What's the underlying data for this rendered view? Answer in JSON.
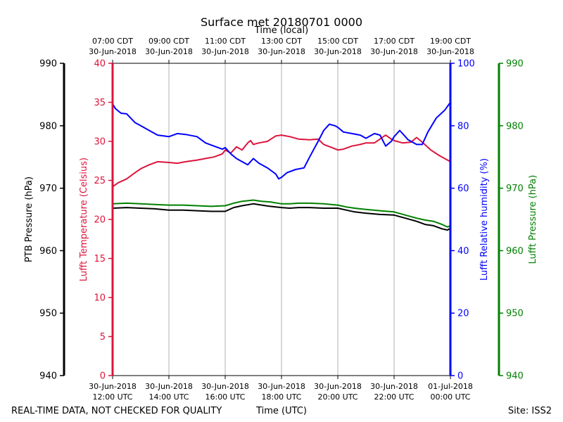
{
  "chart_data": {
    "type": "line",
    "title": "Surface met 20180701 0000",
    "top_axis_label": "Time (local)",
    "bottom_axis_label": "Time (UTC)",
    "footer_left": "REAL-TIME DATA, NOT CHECKED FOR QUALITY",
    "footer_right": "Site: ISS2",
    "x_range_hours_utc": [
      12,
      24
    ],
    "bottom_ticks": [
      {
        "hour": 12,
        "line1": "30-Jun-2018",
        "line2": "12:00 UTC"
      },
      {
        "hour": 14,
        "line1": "30-Jun-2018",
        "line2": "14:00 UTC"
      },
      {
        "hour": 16,
        "line1": "30-Jun-2018",
        "line2": "16:00 UTC"
      },
      {
        "hour": 18,
        "line1": "30-Jun-2018",
        "line2": "18:00 UTC"
      },
      {
        "hour": 20,
        "line1": "30-Jun-2018",
        "line2": "20:00 UTC"
      },
      {
        "hour": 22,
        "line1": "30-Jun-2018",
        "line2": "22:00 UTC"
      },
      {
        "hour": 24,
        "line1": "01-Jul-2018",
        "line2": "00:00 UTC"
      }
    ],
    "top_ticks": [
      {
        "hour": 12,
        "line1": "07:00 CDT",
        "line2": "30-Jun-2018"
      },
      {
        "hour": 14,
        "line1": "09:00 CDT",
        "line2": "30-Jun-2018"
      },
      {
        "hour": 16,
        "line1": "11:00 CDT",
        "line2": "30-Jun-2018"
      },
      {
        "hour": 18,
        "line1": "13:00 CDT",
        "line2": "30-Jun-2018"
      },
      {
        "hour": 20,
        "line1": "15:00 CDT",
        "line2": "30-Jun-2018"
      },
      {
        "hour": 22,
        "line1": "17:00 CDT",
        "line2": "30-Jun-2018"
      },
      {
        "hour": 24,
        "line1": "19:00 CDT",
        "line2": "30-Jun-2018"
      }
    ],
    "axes": {
      "ptb": {
        "label": "PTB Pressure (hPa)",
        "color": "#000000",
        "range": [
          940,
          990
        ],
        "ticks": [
          940,
          950,
          960,
          970,
          980,
          990
        ]
      },
      "temp": {
        "label": "Lufft Temperature (Celsius)",
        "color": "#dc143c",
        "range": [
          0,
          40
        ],
        "ticks": [
          0,
          5,
          10,
          15,
          20,
          25,
          30,
          35,
          40
        ]
      },
      "rh": {
        "label": "Lufft Relative humidity (%)",
        "color": "#0000ff",
        "range": [
          0,
          100
        ],
        "ticks": [
          0,
          20,
          40,
          60,
          80,
          100
        ]
      },
      "lp": {
        "label": "Lufft Pressure (hPa)",
        "color": "#008000",
        "range": [
          940,
          990
        ],
        "ticks": [
          940,
          950,
          960,
          970,
          980,
          990
        ]
      }
    },
    "series": [
      {
        "name": "Lufft Temperature",
        "axis": "temp",
        "color": "#dc143c",
        "x": [
          12.0,
          12.2,
          12.5,
          12.8,
          13.0,
          13.3,
          13.6,
          14.0,
          14.3,
          14.6,
          15.0,
          15.3,
          15.6,
          15.9,
          16.0,
          16.2,
          16.4,
          16.6,
          16.8,
          16.9,
          17.0,
          17.2,
          17.5,
          17.8,
          18.0,
          18.3,
          18.6,
          19.0,
          19.3,
          19.5,
          19.8,
          20.0,
          20.2,
          20.5,
          20.8,
          21.0,
          21.3,
          21.5,
          21.7,
          21.9,
          22.0,
          22.3,
          22.6,
          22.8,
          23.0,
          23.3,
          23.6,
          23.9,
          24.0
        ],
        "y": [
          24.2,
          24.7,
          25.2,
          26.0,
          26.5,
          27.0,
          27.4,
          27.3,
          27.2,
          27.4,
          27.6,
          27.8,
          28.0,
          28.4,
          28.9,
          28.5,
          29.3,
          28.9,
          29.8,
          30.1,
          29.6,
          29.8,
          30.0,
          30.7,
          30.8,
          30.6,
          30.3,
          30.2,
          30.3,
          29.6,
          29.2,
          28.9,
          29.0,
          29.4,
          29.6,
          29.8,
          29.8,
          30.3,
          30.8,
          30.3,
          30.1,
          29.8,
          29.9,
          30.5,
          29.9,
          28.9,
          28.2,
          27.6,
          27.4
        ]
      },
      {
        "name": "Lufft Relative humidity",
        "axis": "rh",
        "color": "#0000ff",
        "x": [
          12.0,
          12.1,
          12.3,
          12.5,
          12.8,
          13.0,
          13.3,
          13.6,
          14.0,
          14.3,
          14.6,
          15.0,
          15.3,
          15.6,
          15.9,
          16.0,
          16.2,
          16.4,
          16.6,
          16.8,
          17.0,
          17.2,
          17.5,
          17.8,
          17.9,
          18.0,
          18.2,
          18.5,
          18.8,
          19.0,
          19.3,
          19.5,
          19.7,
          19.9,
          20.0,
          20.2,
          20.5,
          20.8,
          21.0,
          21.3,
          21.5,
          21.7,
          21.9,
          22.0,
          22.2,
          22.5,
          22.8,
          23.0,
          23.2,
          23.5,
          23.8,
          24.0
        ],
        "y": [
          87.0,
          85.5,
          84.0,
          83.8,
          81.0,
          80.0,
          78.5,
          77.0,
          76.5,
          77.5,
          77.2,
          76.5,
          74.5,
          73.5,
          72.5,
          73.0,
          71.0,
          69.5,
          68.5,
          67.5,
          69.5,
          68.0,
          66.5,
          64.5,
          63.0,
          63.5,
          65.0,
          66.0,
          66.5,
          70.0,
          75.0,
          78.5,
          80.5,
          80.0,
          79.5,
          78.0,
          77.5,
          77.0,
          76.0,
          77.5,
          77.0,
          73.5,
          75.0,
          76.5,
          78.5,
          75.5,
          74.0,
          74.0,
          78.0,
          82.5,
          85.0,
          87.5
        ]
      },
      {
        "name": "PTB Pressure",
        "axis": "ptb",
        "color": "#000000",
        "x": [
          12.0,
          12.5,
          13.0,
          13.5,
          14.0,
          14.5,
          15.0,
          15.5,
          16.0,
          16.3,
          16.6,
          17.0,
          17.3,
          17.6,
          18.0,
          18.3,
          18.6,
          19.0,
          19.5,
          20.0,
          20.3,
          20.6,
          21.0,
          21.5,
          22.0,
          22.4,
          22.8,
          23.1,
          23.4,
          23.7,
          23.9,
          24.0
        ],
        "y": [
          966.8,
          966.9,
          966.8,
          966.7,
          966.5,
          966.5,
          966.4,
          966.3,
          966.3,
          966.9,
          967.2,
          967.5,
          967.3,
          967.1,
          966.9,
          966.8,
          966.9,
          966.9,
          966.8,
          966.8,
          966.5,
          966.2,
          966.0,
          965.8,
          965.7,
          965.2,
          964.7,
          964.2,
          964.0,
          963.5,
          963.3,
          963.6
        ]
      },
      {
        "name": "Lufft Pressure",
        "axis": "lp",
        "color": "#008000",
        "x": [
          12.0,
          12.5,
          13.0,
          13.5,
          14.0,
          14.5,
          15.0,
          15.5,
          16.0,
          16.3,
          16.6,
          17.0,
          17.3,
          17.6,
          18.0,
          18.3,
          18.6,
          19.0,
          19.5,
          20.0,
          20.3,
          20.6,
          21.0,
          21.5,
          22.0,
          22.4,
          22.8,
          23.1,
          23.4,
          23.7,
          23.9,
          24.0
        ],
        "y": [
          967.5,
          967.6,
          967.5,
          967.4,
          967.3,
          967.3,
          967.2,
          967.1,
          967.2,
          967.6,
          967.9,
          968.1,
          967.9,
          967.8,
          967.5,
          967.5,
          967.6,
          967.6,
          967.5,
          967.3,
          967.0,
          966.8,
          966.6,
          966.4,
          966.2,
          965.7,
          965.2,
          964.9,
          964.7,
          964.2,
          963.8,
          964.0
        ]
      }
    ]
  }
}
